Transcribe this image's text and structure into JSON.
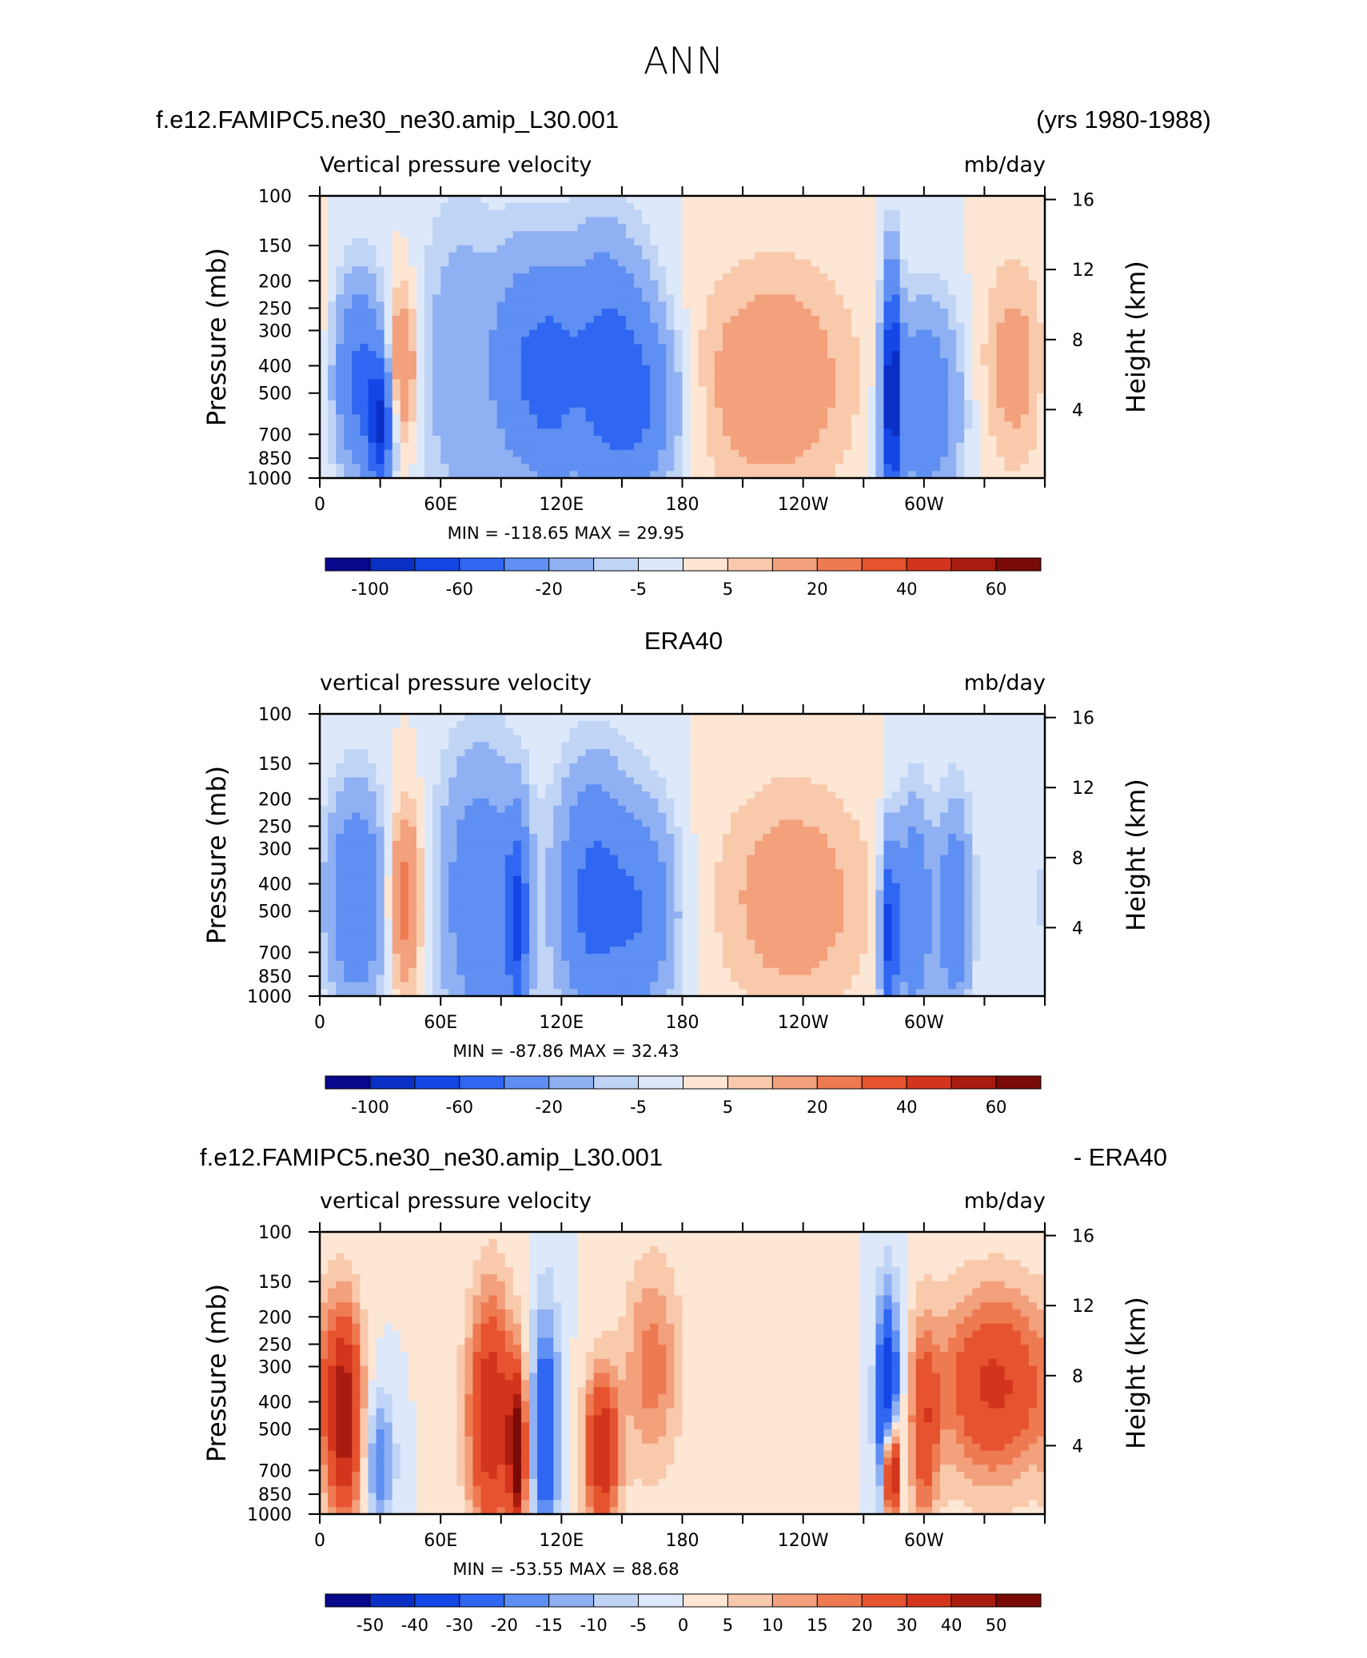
{
  "title": "ANN",
  "panels": [
    {
      "header_left": "f.e12.FAMIPC5.ne30_ne30.amip_L30.001",
      "header_right": "(yrs 1980-1988)",
      "field_label": "Vertical pressure velocity",
      "units": "mb/day",
      "min_max_text": "MIN = -118.65   MAX =   29.95"
    },
    {
      "header_left": "",
      "header_center": "ERA40",
      "header_right": "",
      "field_label": "vertical pressure velocity",
      "units": "mb/day",
      "min_max_text": "MIN = -87.86   MAX =   32.43"
    },
    {
      "header_left": "f.e12.FAMIPC5.ne30_ne30.amip_L30.001",
      "header_right": "- ERA40",
      "field_label": "vertical pressure velocity",
      "units": "mb/day",
      "min_max_text": "MIN = -53.55   MAX =   88.68"
    }
  ],
  "colors": {
    "scale": [
      "#08088c",
      "#0a2fc4",
      "#1446e6",
      "#2f66f2",
      "#5f8ff2",
      "#8fb0f2",
      "#c0d4f6",
      "#dde9fb",
      "#fde6d4",
      "#f9c9ac",
      "#f3a07c",
      "#ee7a52",
      "#e6532f",
      "#d2341c",
      "#a81c10",
      "#7a0a06"
    ]
  },
  "chart_data": [
    {
      "type": "heatmap",
      "title": "f.e12.FAMIPC5.ne30_ne30.amip_L30.001",
      "ylabel": "Pressure (mb)",
      "y2label": "Height (km)",
      "x_ticks": [
        "0",
        "60E",
        "120E",
        "180",
        "120W",
        "60W"
      ],
      "x_tick_values": [
        0,
        60,
        120,
        180,
        240,
        300
      ],
      "x_range": [
        0,
        360
      ],
      "y_ticks": [
        "100",
        "150",
        "200",
        "250",
        "300",
        "400",
        "500",
        "700",
        "850",
        "1000"
      ],
      "y_tick_values": [
        100,
        150,
        200,
        250,
        300,
        400,
        500,
        700,
        850,
        1000
      ],
      "y2_ticks": [
        "16",
        "12",
        "8",
        "4"
      ],
      "y2_tick_values": [
        16,
        12,
        8,
        4
      ],
      "ylim": [
        1000,
        100
      ],
      "log_scale_y": true,
      "colorbar_labels": [
        "-100",
        "-60",
        "-20",
        "-5",
        "5",
        "20",
        "40",
        "60"
      ],
      "contour_levels": [
        -120,
        -100,
        -80,
        -60,
        -40,
        -20,
        -10,
        -5,
        0,
        5,
        10,
        20,
        30,
        40,
        50,
        60,
        70
      ],
      "min": -118.65,
      "max": 29.95,
      "features": [
        {
          "lon": 20,
          "p": 450,
          "v": -45,
          "wx": 9,
          "wp": 0.55
        },
        {
          "lon": 30,
          "p": 650,
          "v": -70,
          "wx": 4,
          "wp": 0.35
        },
        {
          "lon": 40,
          "p": 400,
          "v": 25,
          "wx": 6,
          "wp": 0.45
        },
        {
          "lon": 70,
          "p": 400,
          "v": -18,
          "wx": 14,
          "wp": 0.9
        },
        {
          "lon": 100,
          "p": 400,
          "v": -32,
          "wx": 10,
          "wp": 0.65
        },
        {
          "lon": 115,
          "p": 450,
          "v": -28,
          "wx": 8,
          "wp": 0.6
        },
        {
          "lon": 140,
          "p": 400,
          "v": -45,
          "wx": 16,
          "wp": 0.7
        },
        {
          "lon": 160,
          "p": 550,
          "v": -30,
          "wx": 14,
          "wp": 0.5
        },
        {
          "lon": 225,
          "p": 450,
          "v": 18,
          "wx": 28,
          "wp": 0.65
        },
        {
          "lon": 284,
          "p": 500,
          "v": -95,
          "wx": 3,
          "wp": 0.65
        },
        {
          "lon": 300,
          "p": 550,
          "v": -38,
          "wx": 12,
          "wp": 0.55
        },
        {
          "lon": 345,
          "p": 400,
          "v": 14,
          "wx": 12,
          "wp": 0.6
        }
      ]
    },
    {
      "type": "heatmap",
      "title": "ERA40",
      "ylabel": "Pressure (mb)",
      "y2label": "Height (km)",
      "x_ticks": [
        "0",
        "60E",
        "120E",
        "180",
        "120W",
        "60W"
      ],
      "x_tick_values": [
        0,
        60,
        120,
        180,
        240,
        300
      ],
      "x_range": [
        0,
        360
      ],
      "y_ticks": [
        "100",
        "150",
        "200",
        "250",
        "300",
        "400",
        "500",
        "700",
        "850",
        "1000"
      ],
      "y_tick_values": [
        100,
        150,
        200,
        250,
        300,
        400,
        500,
        700,
        850,
        1000
      ],
      "y2_ticks": [
        "16",
        "12",
        "8",
        "4"
      ],
      "y2_tick_values": [
        16,
        12,
        8,
        4
      ],
      "ylim": [
        1000,
        100
      ],
      "log_scale_y": true,
      "colorbar_labels": [
        "-100",
        "-60",
        "-20",
        "-5",
        "5",
        "20",
        "40",
        "60"
      ],
      "contour_levels": [
        -120,
        -100,
        -80,
        -60,
        -40,
        -20,
        -10,
        -5,
        0,
        5,
        10,
        20,
        30,
        40,
        50,
        60,
        70
      ],
      "min": -87.86,
      "max": 32.43,
      "features": [
        {
          "lon": 18,
          "p": 450,
          "v": -40,
          "wx": 10,
          "wp": 0.6
        },
        {
          "lon": 42,
          "p": 450,
          "v": 28,
          "wx": 6,
          "wp": 0.5
        },
        {
          "lon": 80,
          "p": 450,
          "v": -35,
          "wx": 14,
          "wp": 0.8
        },
        {
          "lon": 98,
          "p": 550,
          "v": -55,
          "wx": 4,
          "wp": 0.55
        },
        {
          "lon": 135,
          "p": 450,
          "v": -45,
          "wx": 12,
          "wp": 0.7
        },
        {
          "lon": 160,
          "p": 500,
          "v": -35,
          "wx": 12,
          "wp": 0.6
        },
        {
          "lon": 235,
          "p": 450,
          "v": 16,
          "wx": 26,
          "wp": 0.65
        },
        {
          "lon": 283,
          "p": 600,
          "v": -70,
          "wx": 3,
          "wp": 0.5
        },
        {
          "lon": 295,
          "p": 500,
          "v": -40,
          "wx": 6,
          "wp": 0.6
        },
        {
          "lon": 315,
          "p": 500,
          "v": -35,
          "wx": 6,
          "wp": 0.6
        }
      ]
    },
    {
      "type": "heatmap",
      "title": "f.e12.FAMIPC5.ne30_ne30.amip_L30.001 - ERA40",
      "ylabel": "Pressure (mb)",
      "y2label": "Height (km)",
      "x_ticks": [
        "0",
        "60E",
        "120E",
        "180",
        "120W",
        "60W"
      ],
      "x_tick_values": [
        0,
        60,
        120,
        180,
        240,
        300
      ],
      "x_range": [
        0,
        360
      ],
      "y_ticks": [
        "100",
        "150",
        "200",
        "250",
        "300",
        "400",
        "500",
        "700",
        "850",
        "1000"
      ],
      "y_tick_values": [
        100,
        150,
        200,
        250,
        300,
        400,
        500,
        700,
        850,
        1000
      ],
      "y2_ticks": [
        "16",
        "12",
        "8",
        "4"
      ],
      "y2_tick_values": [
        16,
        12,
        8,
        4
      ],
      "ylim": [
        1000,
        100
      ],
      "log_scale_y": true,
      "colorbar_labels": [
        "-50",
        "-40",
        "-30",
        "-20",
        "-15",
        "-10",
        "-5",
        "0",
        "5",
        "10",
        "15",
        "20",
        "30",
        "40",
        "50"
      ],
      "contour_levels": [
        -60,
        -50,
        -40,
        -30,
        -20,
        -15,
        -10,
        -5,
        0,
        5,
        10,
        15,
        20,
        30,
        40,
        50,
        60
      ],
      "min": -53.55,
      "max": 88.68,
      "features": [
        {
          "lon": 12,
          "p": 450,
          "v": 45,
          "wx": 6,
          "wp": 0.6
        },
        {
          "lon": 30,
          "p": 650,
          "v": -20,
          "wx": 5,
          "wp": 0.4
        },
        {
          "lon": 85,
          "p": 450,
          "v": 40,
          "wx": 8,
          "wp": 0.7
        },
        {
          "lon": 98,
          "p": 600,
          "v": 55,
          "wx": 3,
          "wp": 0.45
        },
        {
          "lon": 112,
          "p": 500,
          "v": -30,
          "wx": 5,
          "wp": 0.7
        },
        {
          "lon": 140,
          "p": 600,
          "v": 40,
          "wx": 6,
          "wp": 0.45
        },
        {
          "lon": 165,
          "p": 300,
          "v": 18,
          "wx": 10,
          "wp": 0.6
        },
        {
          "lon": 282,
          "p": 400,
          "v": -45,
          "wx": 4,
          "wp": 0.6
        },
        {
          "lon": 284,
          "p": 700,
          "v": 70,
          "wx": 2.5,
          "wp": 0.3
        },
        {
          "lon": 300,
          "p": 500,
          "v": 25,
          "wx": 5,
          "wp": 0.6
        },
        {
          "lon": 335,
          "p": 350,
          "v": 32,
          "wx": 20,
          "wp": 0.55
        }
      ]
    }
  ]
}
